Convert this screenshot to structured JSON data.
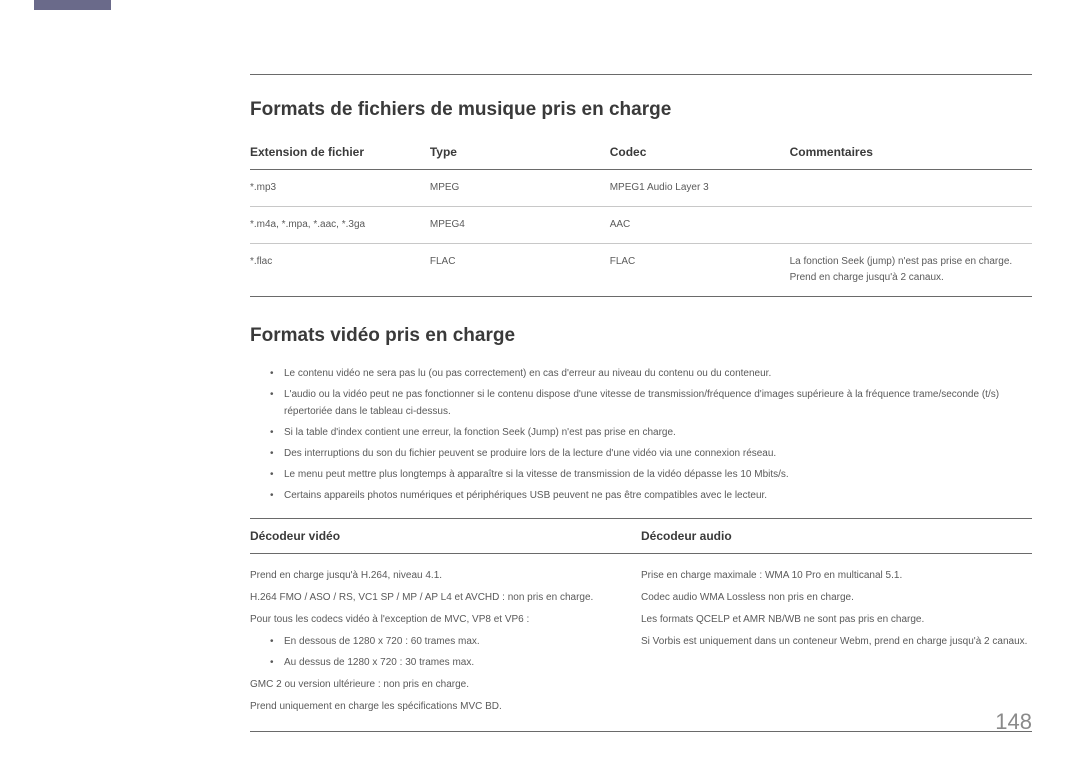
{
  "page_number": "148",
  "accent_color": "#6a6a8a",
  "music": {
    "title": "Formats de fichiers de musique pris en charge",
    "columns": [
      "Extension de fichier",
      "Type",
      "Codec",
      "Commentaires"
    ],
    "col_widths": [
      "23%",
      "23%",
      "23%",
      "31%"
    ],
    "rows": [
      {
        "ext": "*.mp3",
        "type": "MPEG",
        "codec": "MPEG1 Audio Layer 3",
        "comment": ""
      },
      {
        "ext": "*.m4a, *.mpa, *.aac, *.3ga",
        "type": "MPEG4",
        "codec": "AAC",
        "comment": ""
      },
      {
        "ext": "*.flac",
        "type": "FLAC",
        "codec": "FLAC",
        "comment": "La fonction Seek (jump) n'est pas prise en charge.\nPrend en charge jusqu'à 2 canaux."
      }
    ]
  },
  "video": {
    "title": "Formats vidéo pris en charge",
    "bullets": [
      "Le contenu vidéo ne sera pas lu (ou pas correctement) en cas d'erreur au niveau du contenu ou du conteneur.",
      "L'audio ou la vidéo peut ne pas fonctionner si le contenu dispose d'une vitesse de transmission/fréquence d'images supérieure à la fréquence trame/seconde (t/s) répertoriée dans le tableau ci-dessus.",
      "Si la table d'index contient une erreur, la fonction Seek (Jump) n'est pas prise en charge.",
      "Des interruptions du son du fichier peuvent se produire lors de la lecture d'une vidéo via une connexion réseau.",
      "Le menu peut mettre plus longtemps à apparaître si la vitesse de transmission de la vidéo dépasse les 10 Mbits/s.",
      "Certains appareils photos numériques et périphériques USB peuvent ne pas être compatibles avec le lecteur."
    ]
  },
  "decoders": {
    "columns": [
      "Décodeur vidéo",
      "Décodeur audio"
    ],
    "video_lines_before": [
      "Prend en charge jusqu'à H.264, niveau 4.1.",
      "H.264 FMO / ASO / RS, VC1 SP / MP / AP L4 et AVCHD : non pris en charge.",
      "Pour tous les codecs vidéo à l'exception de MVC, VP8 et VP6 :"
    ],
    "video_bullets": [
      "En dessous de 1280 x 720 : 60 trames max.",
      "Au dessus de 1280 x 720 : 30 trames max."
    ],
    "video_lines_after": [
      "GMC 2 ou version ultérieure : non pris en charge.",
      "Prend uniquement en charge les spécifications MVC BD."
    ],
    "audio_lines": [
      "Prise en charge maximale : WMA 10 Pro en multicanal 5.1.",
      "Codec audio WMA Lossless non pris en charge.",
      "Les formats QCELP et AMR NB/WB ne sont pas pris en charge.",
      "Si Vorbis est uniquement dans un conteneur Webm, prend en charge jusqu'à 2 canaux."
    ]
  }
}
